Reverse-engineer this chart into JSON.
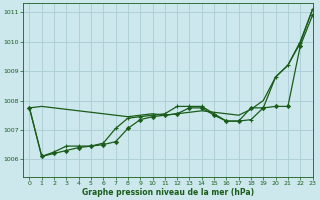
{
  "xlabel": "Graphe pression niveau de la mer (hPa)",
  "background_color": "#cce8ec",
  "grid_color": "#aaccd4",
  "line_color": "#1a5c1a",
  "xlim": [
    -0.5,
    23
  ],
  "ylim": [
    1005.4,
    1011.3
  ],
  "yticks": [
    1006,
    1007,
    1008,
    1009,
    1010,
    1011
  ],
  "xticks": [
    0,
    1,
    2,
    3,
    4,
    5,
    6,
    7,
    8,
    9,
    10,
    11,
    12,
    13,
    14,
    15,
    16,
    17,
    18,
    19,
    20,
    21,
    22,
    23
  ],
  "series_smooth": [
    1007.75,
    1007.8,
    1007.75,
    1007.7,
    1007.65,
    1007.6,
    1007.55,
    1007.5,
    1007.45,
    1007.5,
    1007.55,
    1007.5,
    1007.55,
    1007.6,
    1007.65,
    1007.6,
    1007.55,
    1007.5,
    1007.7,
    1008.0,
    1008.8,
    1009.2,
    1010.0,
    1011.1
  ],
  "series_diamond": [
    1007.75,
    1006.1,
    1006.2,
    1006.3,
    1006.4,
    1006.45,
    1006.5,
    1006.6,
    1007.05,
    1007.35,
    1007.45,
    1007.5,
    1007.55,
    1007.75,
    1007.75,
    1007.5,
    1007.3,
    1007.3,
    1007.75,
    1007.75,
    1007.8,
    1007.8,
    1009.85,
    1010.9
  ],
  "series_cross": [
    1007.75,
    1006.1,
    1006.25,
    1006.45,
    1006.45,
    1006.45,
    1006.55,
    1007.05,
    1007.4,
    1007.45,
    1007.5,
    1007.55,
    1007.8,
    1007.8,
    1007.8,
    1007.55,
    1007.3,
    1007.3,
    1007.35,
    1007.75,
    1008.8,
    1009.2,
    1009.95,
    1011.1
  ]
}
